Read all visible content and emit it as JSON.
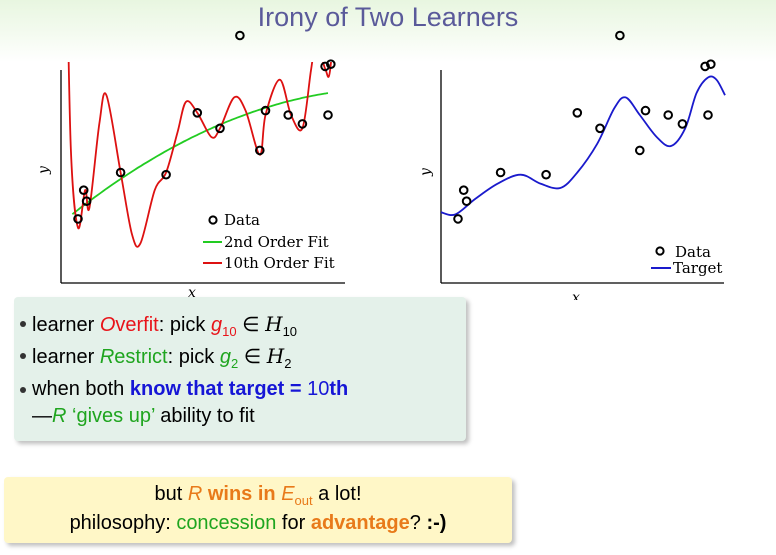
{
  "title": "Irony of Two Learners",
  "chart_data": [
    {
      "type": "scatter",
      "xlabel": "x",
      "ylabel": "y",
      "legend": [
        "Data",
        "2nd Order Fit",
        "10th Order Fit"
      ],
      "legend_position": "bottom-right",
      "points": [
        [
          0.06,
          0.29
        ],
        [
          0.08,
          0.42
        ],
        [
          0.09,
          0.37
        ],
        [
          0.21,
          0.5
        ],
        [
          0.37,
          0.49
        ],
        [
          0.48,
          0.77
        ],
        [
          0.56,
          0.7
        ],
        [
          0.63,
          1.12
        ],
        [
          0.7,
          0.6
        ],
        [
          0.72,
          0.78
        ],
        [
          0.8,
          0.76
        ],
        [
          0.85,
          0.72
        ],
        [
          0.93,
          0.98
        ],
        [
          0.94,
          0.76
        ],
        [
          0.95,
          0.99
        ]
      ],
      "series_colors": {
        "data": "#000000",
        "2nd Order Fit": "#22cc22",
        "10th Order Fit": "#dd1111"
      }
    },
    {
      "type": "scatter",
      "xlabel": "x",
      "ylabel": "y",
      "legend": [
        "Data",
        "Target"
      ],
      "legend_position": "bottom-right",
      "points": [
        [
          0.06,
          0.29
        ],
        [
          0.08,
          0.42
        ],
        [
          0.09,
          0.37
        ],
        [
          0.21,
          0.5
        ],
        [
          0.37,
          0.49
        ],
        [
          0.48,
          0.77
        ],
        [
          0.56,
          0.7
        ],
        [
          0.63,
          1.12
        ],
        [
          0.7,
          0.6
        ],
        [
          0.72,
          0.78
        ],
        [
          0.8,
          0.76
        ],
        [
          0.85,
          0.72
        ],
        [
          0.93,
          0.98
        ],
        [
          0.94,
          0.76
        ],
        [
          0.95,
          0.99
        ]
      ],
      "series_colors": {
        "data": "#000000",
        "Target": "#1a1acc"
      }
    }
  ],
  "bullets": {
    "b1": {
      "pre": "learner ",
      "first": "O",
      "rest": "verfit",
      "mid": ": pick ",
      "g": "g",
      "gsub": "10",
      "in": " ∈ ",
      "H": "H",
      "Hsub": "10"
    },
    "b2": {
      "pre": "learner ",
      "first": "R",
      "rest": "estrict",
      "mid": ": pick ",
      "g": "g",
      "gsub": "2",
      "in": " ∈ ",
      "H": "H",
      "Hsub": "2"
    },
    "b3": {
      "pre": "when both ",
      "bold": "know that target = ",
      "num": "10",
      "th": "th"
    },
    "b4": {
      "dash": "—",
      "R": "R",
      "quote": " ‘gives up’",
      "rest": " ability to fit"
    }
  },
  "bottom": {
    "l1": {
      "pre": "but ",
      "R": "R",
      "wins": " wins in ",
      "E": "E",
      "Esub": "out",
      "post": " a lot!"
    },
    "l2": {
      "pre": "philosophy: ",
      "concession": "concession",
      "for": " for ",
      "advantage": "advantage",
      "q": "? ",
      "smiley": ":-)"
    }
  }
}
